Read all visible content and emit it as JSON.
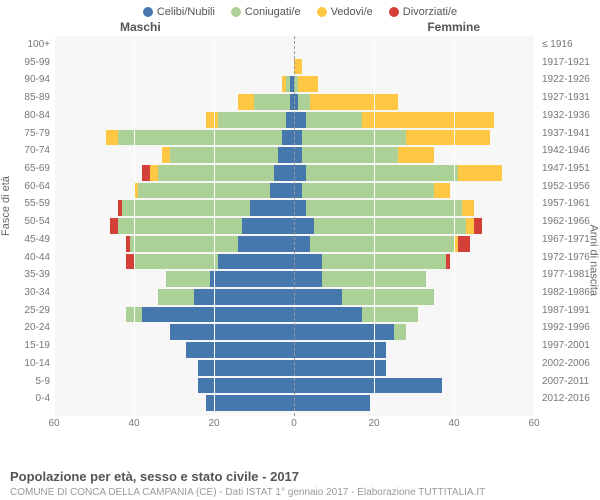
{
  "legend": [
    {
      "label": "Celibi/Nubili",
      "color": "#4677ad"
    },
    {
      "label": "Coniugati/e",
      "color": "#abd197"
    },
    {
      "label": "Vedovi/e",
      "color": "#ffc744"
    },
    {
      "label": "Divorziati/e",
      "color": "#d44038"
    }
  ],
  "header_male": "Maschi",
  "header_female": "Femmine",
  "axis_left_title": "Fasce di età",
  "axis_right_title": "Anni di nascita",
  "title": "Popolazione per età, sesso e stato civile - 2017",
  "subtitle": "COMUNE DI CONCA DELLA CAMPANIA (CE) - Dati ISTAT 1° gennaio 2017 - Elaborazione TUTTITALIA.IT",
  "chart": {
    "type": "population-pyramid",
    "xmax": 60,
    "xticks": [
      60,
      40,
      20,
      0,
      20,
      40,
      60
    ],
    "background": "#f7f7f7",
    "grid_color": "#ffffff",
    "centerline_color": "#999999",
    "colors": {
      "s": "#4677ad",
      "m": "#abd197",
      "w": "#ffc744",
      "d": "#d44038"
    },
    "rows": [
      {
        "age": "100+",
        "birth": "≤ 1916",
        "M": {
          "s": 0,
          "m": 0,
          "w": 0,
          "d": 0
        },
        "F": {
          "s": 0,
          "m": 0,
          "w": 0,
          "d": 0
        }
      },
      {
        "age": "95-99",
        "birth": "1917-1921",
        "M": {
          "s": 0,
          "m": 0,
          "w": 0,
          "d": 0
        },
        "F": {
          "s": 0,
          "m": 0,
          "w": 2,
          "d": 0
        }
      },
      {
        "age": "90-94",
        "birth": "1922-1926",
        "M": {
          "s": 1,
          "m": 1,
          "w": 1,
          "d": 0
        },
        "F": {
          "s": 0,
          "m": 1,
          "w": 5,
          "d": 0
        }
      },
      {
        "age": "85-89",
        "birth": "1927-1931",
        "M": {
          "s": 1,
          "m": 9,
          "w": 4,
          "d": 0
        },
        "F": {
          "s": 1,
          "m": 3,
          "w": 22,
          "d": 0
        }
      },
      {
        "age": "80-84",
        "birth": "1932-1936",
        "M": {
          "s": 2,
          "m": 17,
          "w": 3,
          "d": 0
        },
        "F": {
          "s": 3,
          "m": 14,
          "w": 33,
          "d": 0
        }
      },
      {
        "age": "75-79",
        "birth": "1937-1941",
        "M": {
          "s": 3,
          "m": 41,
          "w": 3,
          "d": 0
        },
        "F": {
          "s": 2,
          "m": 26,
          "w": 21,
          "d": 0
        }
      },
      {
        "age": "70-74",
        "birth": "1942-1946",
        "M": {
          "s": 4,
          "m": 27,
          "w": 2,
          "d": 0
        },
        "F": {
          "s": 2,
          "m": 24,
          "w": 9,
          "d": 0
        }
      },
      {
        "age": "65-69",
        "birth": "1947-1951",
        "M": {
          "s": 5,
          "m": 29,
          "w": 2,
          "d": 2
        },
        "F": {
          "s": 3,
          "m": 38,
          "w": 11,
          "d": 0
        }
      },
      {
        "age": "60-64",
        "birth": "1952-1956",
        "M": {
          "s": 6,
          "m": 33,
          "w": 1,
          "d": 0
        },
        "F": {
          "s": 2,
          "m": 33,
          "w": 4,
          "d": 0
        }
      },
      {
        "age": "55-59",
        "birth": "1957-1961",
        "M": {
          "s": 11,
          "m": 32,
          "w": 0,
          "d": 1
        },
        "F": {
          "s": 3,
          "m": 39,
          "w": 3,
          "d": 0
        }
      },
      {
        "age": "50-54",
        "birth": "1962-1966",
        "M": {
          "s": 13,
          "m": 31,
          "w": 0,
          "d": 2
        },
        "F": {
          "s": 5,
          "m": 38,
          "w": 2,
          "d": 2
        }
      },
      {
        "age": "45-49",
        "birth": "1967-1971",
        "M": {
          "s": 14,
          "m": 27,
          "w": 0,
          "d": 1
        },
        "F": {
          "s": 4,
          "m": 36,
          "w": 1,
          "d": 3
        }
      },
      {
        "age": "40-44",
        "birth": "1972-1976",
        "M": {
          "s": 19,
          "m": 21,
          "w": 0,
          "d": 2
        },
        "F": {
          "s": 7,
          "m": 31,
          "w": 0,
          "d": 1
        }
      },
      {
        "age": "35-39",
        "birth": "1977-1981",
        "M": {
          "s": 21,
          "m": 11,
          "w": 0,
          "d": 0
        },
        "F": {
          "s": 7,
          "m": 26,
          "w": 0,
          "d": 0
        }
      },
      {
        "age": "30-34",
        "birth": "1982-1986",
        "M": {
          "s": 25,
          "m": 9,
          "w": 0,
          "d": 0
        },
        "F": {
          "s": 12,
          "m": 23,
          "w": 0,
          "d": 0
        }
      },
      {
        "age": "25-29",
        "birth": "1987-1991",
        "M": {
          "s": 38,
          "m": 4,
          "w": 0,
          "d": 0
        },
        "F": {
          "s": 17,
          "m": 14,
          "w": 0,
          "d": 0
        }
      },
      {
        "age": "20-24",
        "birth": "1992-1996",
        "M": {
          "s": 31,
          "m": 0,
          "w": 0,
          "d": 0
        },
        "F": {
          "s": 25,
          "m": 3,
          "w": 0,
          "d": 0
        }
      },
      {
        "age": "15-19",
        "birth": "1997-2001",
        "M": {
          "s": 27,
          "m": 0,
          "w": 0,
          "d": 0
        },
        "F": {
          "s": 23,
          "m": 0,
          "w": 0,
          "d": 0
        }
      },
      {
        "age": "10-14",
        "birth": "2002-2006",
        "M": {
          "s": 24,
          "m": 0,
          "w": 0,
          "d": 0
        },
        "F": {
          "s": 23,
          "m": 0,
          "w": 0,
          "d": 0
        }
      },
      {
        "age": "5-9",
        "birth": "2007-2011",
        "M": {
          "s": 24,
          "m": 0,
          "w": 0,
          "d": 0
        },
        "F": {
          "s": 37,
          "m": 0,
          "w": 0,
          "d": 0
        }
      },
      {
        "age": "0-4",
        "birth": "2012-2016",
        "M": {
          "s": 22,
          "m": 0,
          "w": 0,
          "d": 0
        },
        "F": {
          "s": 19,
          "m": 0,
          "w": 0,
          "d": 0
        }
      }
    ]
  }
}
